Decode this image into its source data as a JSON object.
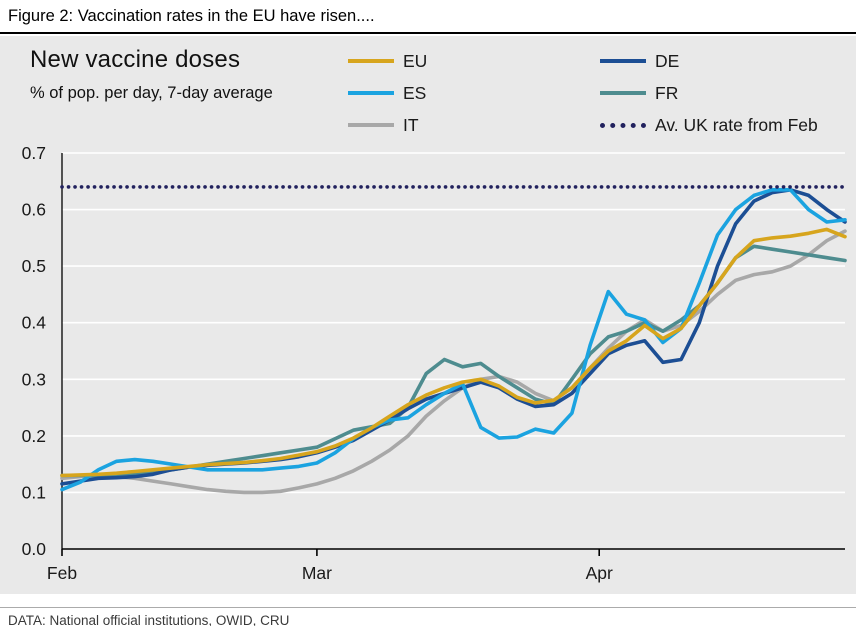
{
  "figure_title": "Figure 2: Vaccination rates in the EU have risen....",
  "footer": "DATA: National official institutions, OWID, CRU",
  "chart_data": {
    "type": "line",
    "title": "New vaccine doses",
    "subtitle": "% of pop. per day, 7-day average",
    "x_axis": {
      "start": "Feb 1",
      "end": "Apr 28",
      "unit": "days since Feb 1"
    },
    "x_step": 2,
    "x_max": 86,
    "xticks": [
      {
        "day": 0,
        "label": "Feb"
      },
      {
        "day": 28,
        "label": "Mar"
      },
      {
        "day": 59,
        "label": "Apr"
      }
    ],
    "yticks": [
      "0.0",
      "0.1",
      "0.2",
      "0.3",
      "0.4",
      "0.5",
      "0.6",
      "0.7"
    ],
    "ylim": [
      0,
      0.7
    ],
    "grid": "horizontal white gridlines on gray panel",
    "legend_position": "top, two columns",
    "panel_background": "#e9e9e9",
    "draw_order": [
      2,
      4,
      3,
      1,
      0,
      5
    ],
    "series": [
      {
        "name": "EU",
        "color": "#d7a51d",
        "style": "solid",
        "values": [
          0.13,
          0.131,
          0.132,
          0.134,
          0.137,
          0.14,
          0.143,
          0.146,
          0.149,
          0.151,
          0.153,
          0.156,
          0.16,
          0.166,
          0.172,
          0.182,
          0.196,
          0.214,
          0.235,
          0.255,
          0.272,
          0.285,
          0.295,
          0.3,
          0.288,
          0.268,
          0.258,
          0.263,
          0.285,
          0.32,
          0.35,
          0.368,
          0.395,
          0.372,
          0.39,
          0.43,
          0.47,
          0.515,
          0.545,
          0.55,
          0.553,
          0.558,
          0.565,
          0.552
        ]
      },
      {
        "name": "ES",
        "color": "#1ba3e0",
        "style": "solid",
        "values": [
          0.105,
          0.118,
          0.14,
          0.155,
          0.158,
          0.155,
          0.15,
          0.145,
          0.14,
          0.14,
          0.14,
          0.14,
          0.143,
          0.146,
          0.152,
          0.17,
          0.195,
          0.215,
          0.228,
          0.232,
          0.255,
          0.275,
          0.292,
          0.215,
          0.196,
          0.198,
          0.212,
          0.205,
          0.24,
          0.36,
          0.455,
          0.415,
          0.405,
          0.365,
          0.39,
          0.47,
          0.555,
          0.6,
          0.625,
          0.635,
          0.635,
          0.6,
          0.578,
          0.582
        ]
      },
      {
        "name": "IT",
        "color": "#a8a8a8",
        "style": "solid",
        "values": [
          0.125,
          0.128,
          0.13,
          0.128,
          0.125,
          0.12,
          0.115,
          0.11,
          0.105,
          0.102,
          0.1,
          0.1,
          0.102,
          0.108,
          0.115,
          0.125,
          0.138,
          0.155,
          0.175,
          0.2,
          0.235,
          0.262,
          0.285,
          0.3,
          0.305,
          0.295,
          0.275,
          0.262,
          0.285,
          0.32,
          0.355,
          0.385,
          0.405,
          0.385,
          0.395,
          0.42,
          0.45,
          0.475,
          0.485,
          0.49,
          0.5,
          0.52,
          0.545,
          0.562
        ]
      },
      {
        "name": "DE",
        "color": "#1c4e94",
        "style": "solid",
        "values": [
          0.115,
          0.12,
          0.125,
          0.126,
          0.128,
          0.132,
          0.14,
          0.145,
          0.148,
          0.15,
          0.152,
          0.155,
          0.158,
          0.163,
          0.17,
          0.18,
          0.192,
          0.21,
          0.228,
          0.248,
          0.265,
          0.275,
          0.285,
          0.295,
          0.285,
          0.265,
          0.252,
          0.255,
          0.275,
          0.31,
          0.345,
          0.36,
          0.368,
          0.33,
          0.335,
          0.4,
          0.5,
          0.575,
          0.615,
          0.63,
          0.635,
          0.625,
          0.6,
          0.578
        ]
      },
      {
        "name": "FR",
        "color": "#4e8c8f",
        "style": "solid",
        "values": [
          0.13,
          0.13,
          0.13,
          0.131,
          0.132,
          0.135,
          0.14,
          0.145,
          0.15,
          0.155,
          0.16,
          0.165,
          0.17,
          0.175,
          0.18,
          0.195,
          0.21,
          0.216,
          0.222,
          0.25,
          0.31,
          0.335,
          0.322,
          0.328,
          0.305,
          0.285,
          0.265,
          0.256,
          0.3,
          0.345,
          0.375,
          0.385,
          0.4,
          0.385,
          0.405,
          0.43,
          0.47,
          0.515,
          0.535,
          0.53,
          0.525,
          0.52,
          0.515,
          0.51
        ]
      },
      {
        "name": "Av. UK rate from Feb",
        "color": "#22225e",
        "style": "dotted",
        "constant": 0.64
      }
    ]
  }
}
